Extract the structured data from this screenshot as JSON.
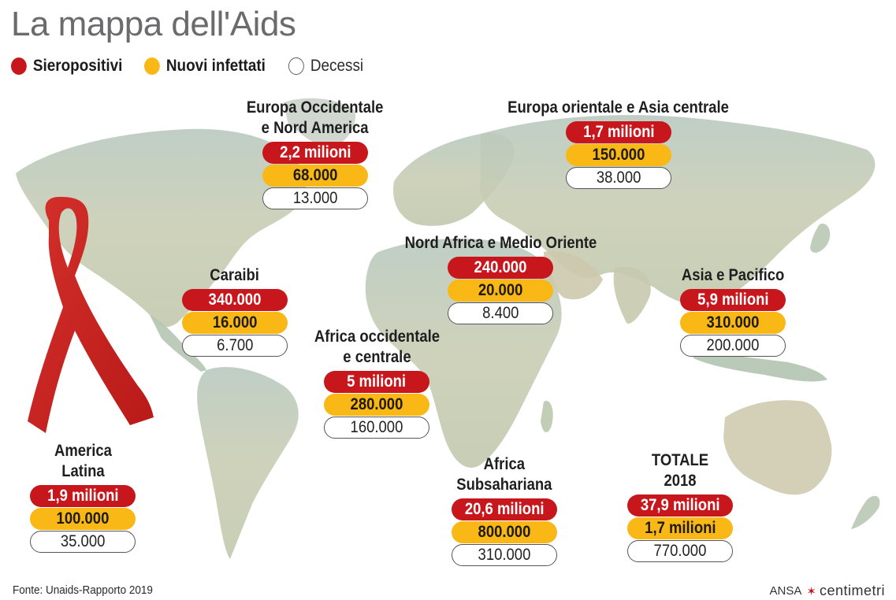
{
  "title": "La mappa dell'Aids",
  "legend": [
    {
      "label": "Sieropositivi",
      "color": "#c8161d",
      "bold": true
    },
    {
      "label": "Nuovi infettati",
      "color": "#f9b815",
      "bold": true
    },
    {
      "label": "Decessi",
      "color": "#ffffff",
      "bold": false
    }
  ],
  "regions": [
    {
      "name_lines": [
        "Europa Occidentale",
        "e Nord America"
      ],
      "sieropositivi": "2,2 milioni",
      "nuovi_infettati": "68.000",
      "decessi": "13.000"
    },
    {
      "name_lines": [
        "Europa orientale e Asia centrale"
      ],
      "sieropositivi": "1,7 milioni",
      "nuovi_infettati": "150.000",
      "decessi": "38.000"
    },
    {
      "name_lines": [
        "Nord Africa e Medio Oriente"
      ],
      "sieropositivi": "240.000",
      "nuovi_infettati": "20.000",
      "decessi": "8.400"
    },
    {
      "name_lines": [
        "Caraibi"
      ],
      "sieropositivi": "340.000",
      "nuovi_infettati": "16.000",
      "decessi": "6.700"
    },
    {
      "name_lines": [
        "Asia e Pacifico"
      ],
      "sieropositivi": "5,9 milioni",
      "nuovi_infettati": "310.000",
      "decessi": "200.000"
    },
    {
      "name_lines": [
        "Africa occidentale",
        "e centrale"
      ],
      "sieropositivi": "5 milioni",
      "nuovi_infettati": "280.000",
      "decessi": "160.000"
    },
    {
      "name_lines": [
        "America",
        "Latina"
      ],
      "sieropositivi": "1,9 milioni",
      "nuovi_infettati": "100.000",
      "decessi": "35.000"
    },
    {
      "name_lines": [
        "Africa",
        "Subsahariana"
      ],
      "sieropositivi": "20,6 milioni",
      "nuovi_infettati": "800.000",
      "decessi": "310.000"
    },
    {
      "name_lines": [
        "TOTALE",
        "2018"
      ],
      "sieropositivi": "37,9 milioni",
      "nuovi_infettati": "1,7 milioni",
      "decessi": "770.000"
    }
  ],
  "source": "Fonte: Unaids-Rapporto 2019",
  "credit": {
    "agency": "ANSA",
    "brand": "centimetri"
  }
}
